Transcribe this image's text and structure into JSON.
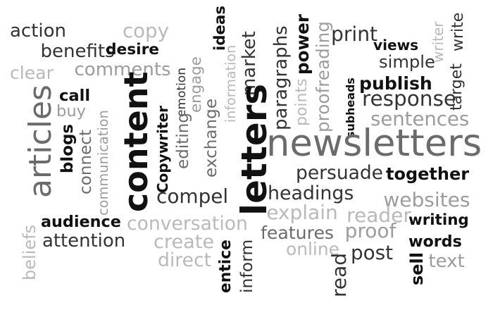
{
  "word_cloud": {
    "colors": {
      "black": "#111111",
      "dark": "#333333",
      "mid": "#6b6b6b",
      "light": "#9c9c9c",
      "pale": "#b9b9b9"
    },
    "words": [
      {
        "text": "action",
        "shade": "dark",
        "vertical": false
      },
      {
        "text": "copy",
        "shade": "pale",
        "vertical": false
      },
      {
        "text": "ideas",
        "shade": "black",
        "vertical": true
      },
      {
        "text": "articles",
        "shade": "mid",
        "vertical": true
      },
      {
        "text": "benefits",
        "shade": "dark",
        "vertical": false
      },
      {
        "text": "desire",
        "shade": "black",
        "vertical": false
      },
      {
        "text": "clear",
        "shade": "pale",
        "vertical": false
      },
      {
        "text": "comments",
        "shade": "light",
        "vertical": false
      },
      {
        "text": "emotion",
        "shade": "dark",
        "vertical": true
      },
      {
        "text": "engage",
        "shade": "light",
        "vertical": true
      },
      {
        "text": "market",
        "shade": "dark",
        "vertical": true
      },
      {
        "text": "information",
        "shade": "pale",
        "vertical": true
      },
      {
        "text": "paragraphs",
        "shade": "dark",
        "vertical": true
      },
      {
        "text": "power",
        "shade": "black",
        "vertical": true
      },
      {
        "text": "points",
        "shade": "pale",
        "vertical": true
      },
      {
        "text": "proofreading",
        "shade": "light",
        "vertical": true
      },
      {
        "text": "print",
        "shade": "dark",
        "vertical": false
      },
      {
        "text": "views",
        "shade": "black",
        "vertical": false
      },
      {
        "text": "writer",
        "shade": "pale",
        "vertical": true
      },
      {
        "text": "write",
        "shade": "dark",
        "vertical": true
      },
      {
        "text": "simple",
        "shade": "dark",
        "vertical": false
      },
      {
        "text": "target",
        "shade": "dark",
        "vertical": true
      },
      {
        "text": "publish",
        "shade": "black",
        "vertical": false
      },
      {
        "text": "subheads",
        "shade": "black",
        "vertical": true
      },
      {
        "text": "response",
        "shade": "dark",
        "vertical": false
      },
      {
        "text": "call",
        "shade": "black",
        "vertical": false
      },
      {
        "text": "buy",
        "shade": "light",
        "vertical": false
      },
      {
        "text": "content",
        "shade": "black",
        "vertical": true
      },
      {
        "text": "letters",
        "shade": "black",
        "vertical": true
      },
      {
        "text": "sentences",
        "shade": "light",
        "vertical": false
      },
      {
        "text": "communication",
        "shade": "light",
        "vertical": true
      },
      {
        "text": "blogs",
        "shade": "black",
        "vertical": true
      },
      {
        "text": "connect",
        "shade": "mid",
        "vertical": true
      },
      {
        "text": "exchange",
        "shade": "mid",
        "vertical": true
      },
      {
        "text": "editing",
        "shade": "mid",
        "vertical": true
      },
      {
        "text": "Copywriter",
        "shade": "black",
        "vertical": true
      },
      {
        "text": "newsletters",
        "shade": "mid",
        "vertical": false
      },
      {
        "text": "persuade",
        "shade": "dark",
        "vertical": false
      },
      {
        "text": "together",
        "shade": "black",
        "vertical": false
      },
      {
        "text": "compel",
        "shade": "dark",
        "vertical": false
      },
      {
        "text": "headings",
        "shade": "dark",
        "vertical": false
      },
      {
        "text": "websites",
        "shade": "light",
        "vertical": false
      },
      {
        "text": "audience",
        "shade": "black",
        "vertical": false
      },
      {
        "text": "explain",
        "shade": "pale",
        "vertical": false
      },
      {
        "text": "reader",
        "shade": "pale",
        "vertical": false
      },
      {
        "text": "beliefs",
        "shade": "pale",
        "vertical": true
      },
      {
        "text": "conversation",
        "shade": "pale",
        "vertical": false
      },
      {
        "text": "writing",
        "shade": "black",
        "vertical": false
      },
      {
        "text": "features",
        "shade": "mid",
        "vertical": false
      },
      {
        "text": "proof",
        "shade": "light",
        "vertical": false
      },
      {
        "text": "attention",
        "shade": "dark",
        "vertical": false
      },
      {
        "text": "create",
        "shade": "pale",
        "vertical": false
      },
      {
        "text": "online",
        "shade": "pale",
        "vertical": false
      },
      {
        "text": "words",
        "shade": "black",
        "vertical": false
      },
      {
        "text": "entice",
        "shade": "black",
        "vertical": true
      },
      {
        "text": "inform",
        "shade": "dark",
        "vertical": true
      },
      {
        "text": "post",
        "shade": "dark",
        "vertical": false
      },
      {
        "text": "direct",
        "shade": "pale",
        "vertical": false
      },
      {
        "text": "read",
        "shade": "dark",
        "vertical": true
      },
      {
        "text": "sell",
        "shade": "black",
        "vertical": true
      },
      {
        "text": "text",
        "shade": "light",
        "vertical": false
      }
    ]
  }
}
